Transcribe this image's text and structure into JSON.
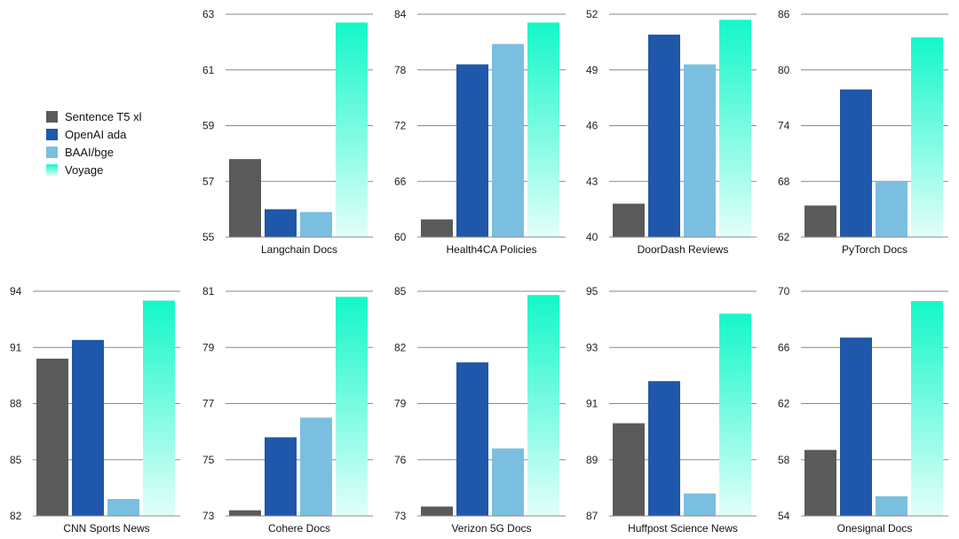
{
  "series": [
    {
      "name": "Sentence T5 xl",
      "color": "#5a5a5a"
    },
    {
      "name": "OpenAI ada",
      "color": "#1f57aa"
    },
    {
      "name": "BAAI/bge",
      "color": "#7bbfe0"
    },
    {
      "name": "Voyage",
      "color": "#18f5cc"
    }
  ],
  "chart_data": [
    {
      "type": "bar",
      "title": "Langchain Docs",
      "ylim": [
        55,
        63
      ],
      "yticks": [
        "55",
        "57",
        "59",
        "61",
        "63"
      ],
      "values": [
        57.8,
        56.0,
        55.9,
        62.7
      ]
    },
    {
      "type": "bar",
      "title": "Health4CA Policies",
      "ylim": [
        60,
        84
      ],
      "yticks": [
        "60",
        "66",
        "72",
        "78",
        "84"
      ],
      "values": [
        61.9,
        78.6,
        80.8,
        83.1
      ]
    },
    {
      "type": "bar",
      "title": "DoorDash Reviews",
      "ylim": [
        40,
        52
      ],
      "yticks": [
        "40",
        "43",
        "46",
        "49",
        "52"
      ],
      "values": [
        41.8,
        50.9,
        49.3,
        51.7
      ]
    },
    {
      "type": "bar",
      "title": "PyTorch Docs",
      "ylim": [
        62,
        86
      ],
      "yticks": [
        "62",
        "68",
        "74",
        "80",
        "86"
      ],
      "values": [
        65.4,
        77.9,
        68.0,
        83.5
      ]
    },
    {
      "type": "bar",
      "title": "CNN Sports News",
      "ylim": [
        82,
        94
      ],
      "yticks": [
        "82",
        "85",
        "88",
        "91",
        "94"
      ],
      "values": [
        90.4,
        91.4,
        82.9,
        93.5
      ]
    },
    {
      "type": "bar",
      "title": "Cohere Docs",
      "ylim": [
        73,
        81
      ],
      "yticks": [
        "73",
        "75",
        "77",
        "79",
        "81"
      ],
      "values": [
        73.2,
        75.8,
        76.5,
        80.8
      ]
    },
    {
      "type": "bar",
      "title": "Verizon 5G Docs",
      "ylim": [
        73,
        85
      ],
      "yticks": [
        "73",
        "76",
        "79",
        "82",
        "85"
      ],
      "values": [
        73.5,
        81.2,
        76.6,
        84.8
      ]
    },
    {
      "type": "bar",
      "title": "Huffpost Science News",
      "ylim": [
        87,
        95
      ],
      "yticks": [
        "87",
        "89",
        "91",
        "93",
        "95"
      ],
      "values": [
        90.3,
        91.8,
        87.8,
        94.2
      ]
    },
    {
      "type": "bar",
      "title": "Onesignal Docs",
      "ylim": [
        54,
        70
      ],
      "yticks": [
        "54",
        "58",
        "62",
        "66",
        "70"
      ],
      "values": [
        58.7,
        66.7,
        55.4,
        69.3
      ]
    }
  ]
}
